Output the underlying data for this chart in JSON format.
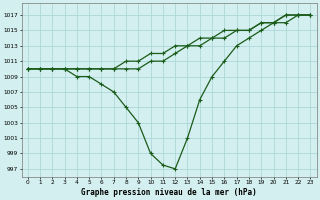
{
  "title": "Graphe pression niveau de la mer (hPa)",
  "bg_color": "#d4efef",
  "grid_color": "#aed8d8",
  "line_color": "#1a5c1a",
  "xlim": [
    -0.5,
    23.5
  ],
  "ylim": [
    996,
    1018.5
  ],
  "xticks": [
    0,
    1,
    2,
    3,
    4,
    5,
    6,
    7,
    8,
    9,
    10,
    11,
    12,
    13,
    14,
    15,
    16,
    17,
    18,
    19,
    20,
    21,
    22,
    23
  ],
  "yticks": [
    997,
    999,
    1001,
    1003,
    1005,
    1007,
    1009,
    1011,
    1013,
    1015,
    1017
  ],
  "series1_x": [
    0,
    1,
    2,
    3,
    4,
    5,
    6,
    7,
    8,
    9,
    10,
    11,
    12,
    13,
    14,
    15,
    16,
    17,
    18,
    19,
    20,
    21,
    22,
    23
  ],
  "series1_y": [
    1010,
    1010,
    1010,
    1010,
    1010,
    1010,
    1010,
    1010,
    1010,
    1010,
    1011,
    1011,
    1012,
    1013,
    1013,
    1014,
    1014,
    1015,
    1015,
    1016,
    1016,
    1017,
    1017,
    1017
  ],
  "series2_x": [
    0,
    1,
    2,
    3,
    4,
    5,
    6,
    7,
    8,
    9,
    10,
    11,
    12,
    13,
    14,
    15,
    16,
    17,
    18,
    19,
    20,
    21,
    22,
    23
  ],
  "series2_y": [
    1010,
    1010,
    1010,
    1010,
    1010,
    1010,
    1010,
    1010,
    1011,
    1011,
    1012,
    1012,
    1013,
    1013,
    1014,
    1014,
    1015,
    1015,
    1015,
    1016,
    1016,
    1016,
    1017,
    1017
  ],
  "series3_x": [
    0,
    1,
    2,
    3,
    4,
    5,
    6,
    7,
    8,
    9,
    10,
    11,
    12,
    13,
    14,
    15,
    16,
    17,
    18,
    19,
    20,
    21,
    22,
    23
  ],
  "series3_y": [
    1010,
    1010,
    1010,
    1010,
    1009,
    1009,
    1008,
    1007,
    1005,
    1003,
    999,
    997.5,
    997,
    1001,
    1006,
    1009,
    1011,
    1013,
    1014,
    1015,
    1016,
    1017,
    1017,
    1017
  ]
}
